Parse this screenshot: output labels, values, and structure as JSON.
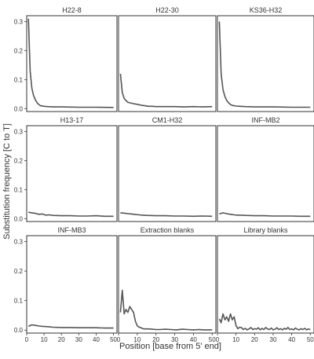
{
  "chart_data": {
    "type": "line",
    "xlabel": "Position [base from 5' end]",
    "ylabel": "Substitution frequency [C to T]",
    "xlim": [
      0,
      52
    ],
    "ylim": [
      -0.01,
      0.32
    ],
    "xticks": [
      0,
      10,
      20,
      30,
      40,
      50
    ],
    "yticks": [
      0.0,
      0.1,
      0.2,
      0.3
    ],
    "ytick_labels": [
      "0.0",
      "0.1",
      "0.2",
      "0.3"
    ],
    "grid": false,
    "line_color": "#555555",
    "panels": [
      {
        "title": "H22-8",
        "x": [
          1,
          2,
          3,
          4,
          5,
          6,
          7,
          8,
          10,
          12,
          15,
          20,
          30,
          40,
          50
        ],
        "y": [
          0.31,
          0.13,
          0.07,
          0.045,
          0.03,
          0.02,
          0.014,
          0.01,
          0.008,
          0.007,
          0.006,
          0.006,
          0.005,
          0.005,
          0.004
        ]
      },
      {
        "title": "H22-30",
        "x": [
          1,
          2,
          3,
          4,
          5,
          6,
          8,
          10,
          12,
          14,
          16,
          18,
          20,
          25,
          30,
          35,
          40,
          45,
          50
        ],
        "y": [
          0.12,
          0.055,
          0.035,
          0.028,
          0.022,
          0.02,
          0.017,
          0.015,
          0.012,
          0.01,
          0.008,
          0.008,
          0.007,
          0.007,
          0.007,
          0.006,
          0.007,
          0.006,
          0.007
        ]
      },
      {
        "title": "KS36-H32",
        "x": [
          1,
          2,
          3,
          4,
          5,
          6,
          7,
          8,
          10,
          12,
          15,
          20,
          30,
          40,
          50
        ],
        "y": [
          0.3,
          0.12,
          0.065,
          0.042,
          0.028,
          0.02,
          0.014,
          0.011,
          0.009,
          0.008,
          0.007,
          0.006,
          0.006,
          0.005,
          0.005
        ]
      },
      {
        "title": "H13-17",
        "x": [
          1,
          3,
          5,
          7,
          9,
          11,
          13,
          15,
          20,
          25,
          30,
          35,
          40,
          45,
          50
        ],
        "y": [
          0.022,
          0.02,
          0.018,
          0.015,
          0.016,
          0.012,
          0.013,
          0.011,
          0.01,
          0.01,
          0.009,
          0.009,
          0.01,
          0.008,
          0.008
        ]
      },
      {
        "title": "CM1-H32",
        "x": [
          1,
          3,
          5,
          7,
          9,
          11,
          13,
          15,
          20,
          25,
          30,
          35,
          40,
          45,
          50
        ],
        "y": [
          0.02,
          0.019,
          0.017,
          0.016,
          0.014,
          0.013,
          0.012,
          0.011,
          0.01,
          0.01,
          0.009,
          0.009,
          0.008,
          0.009,
          0.008
        ]
      },
      {
        "title": "INF-MB2",
        "x": [
          1,
          3,
          5,
          7,
          9,
          11,
          13,
          15,
          20,
          25,
          30,
          35,
          40,
          45,
          50
        ],
        "y": [
          0.016,
          0.02,
          0.017,
          0.015,
          0.013,
          0.012,
          0.012,
          0.011,
          0.01,
          0.01,
          0.009,
          0.009,
          0.009,
          0.008,
          0.008
        ]
      },
      {
        "title": "INF-MB3",
        "x": [
          1,
          3,
          5,
          7,
          9,
          11,
          13,
          15,
          20,
          25,
          30,
          35,
          40,
          45,
          50
        ],
        "y": [
          0.013,
          0.018,
          0.016,
          0.014,
          0.013,
          0.012,
          0.011,
          0.01,
          0.009,
          0.009,
          0.008,
          0.008,
          0.008,
          0.007,
          0.007
        ]
      },
      {
        "title": "Extraction blanks",
        "x": [
          1,
          2,
          3,
          4,
          5,
          6,
          7,
          8,
          9,
          10,
          11,
          12,
          13,
          14,
          16,
          18,
          20,
          22,
          25,
          28,
          31,
          34,
          37,
          40,
          43,
          46,
          50
        ],
        "y": [
          0.06,
          0.135,
          0.055,
          0.07,
          0.06,
          0.08,
          0.07,
          0.06,
          0.03,
          0.015,
          0.01,
          0.008,
          0.005,
          0.004,
          0.004,
          0.003,
          0.002,
          0.002,
          0.003,
          0.002,
          0.001,
          0.003,
          0.002,
          0.001,
          0.002,
          0.001,
          0.001
        ]
      },
      {
        "title": "Library blanks",
        "x": [
          1,
          2,
          3,
          4,
          5,
          6,
          7,
          8,
          9,
          10,
          11,
          12,
          13,
          14,
          15,
          16,
          17,
          18,
          19,
          20,
          21,
          22,
          23,
          24,
          25,
          26,
          27,
          28,
          29,
          30,
          31,
          32,
          33,
          34,
          35,
          36,
          37,
          38,
          39,
          40,
          41,
          42,
          43,
          44,
          45,
          46,
          47,
          48,
          49,
          50
        ],
        "y": [
          0.038,
          0.025,
          0.055,
          0.035,
          0.045,
          0.03,
          0.055,
          0.035,
          0.045,
          0.015,
          0.005,
          0.01,
          0.008,
          0.002,
          0.006,
          0.001,
          0.004,
          0.009,
          0.002,
          0.005,
          0.003,
          0.008,
          0.001,
          0.006,
          0.002,
          0.009,
          0.004,
          0.002,
          0.007,
          0.001,
          0.003,
          0.008,
          0.002,
          0.005,
          0.001,
          0.006,
          0.003,
          0.009,
          0.002,
          0.004,
          0.001,
          0.007,
          0.003,
          0.001,
          0.005,
          0.002,
          0.006,
          0.001,
          0.004,
          0.002
        ]
      }
    ]
  }
}
